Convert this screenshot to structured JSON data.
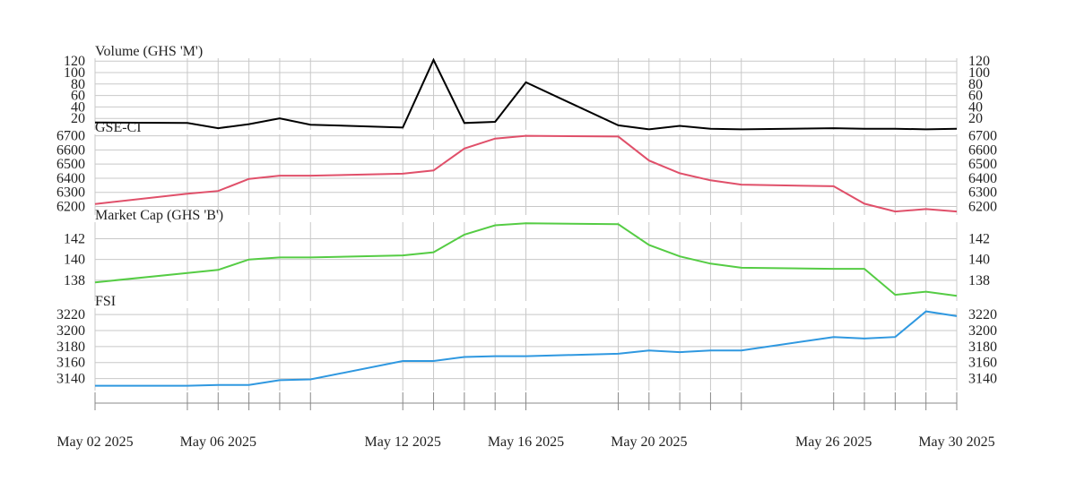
{
  "chart_data": {
    "type": "line",
    "x": [
      "2025-05-02",
      "2025-05-05",
      "2025-05-06",
      "2025-05-07",
      "2025-05-08",
      "2025-05-09",
      "2025-05-12",
      "2025-05-13",
      "2025-05-14",
      "2025-05-15",
      "2025-05-16",
      "2025-05-19",
      "2025-05-20",
      "2025-05-21",
      "2025-05-22",
      "2025-05-23",
      "2025-05-26",
      "2025-05-27",
      "2025-05-28",
      "2025-05-29",
      "2025-05-30"
    ],
    "x_tick_labels": [
      {
        "date": "2025-05-02",
        "label": "May 02 2025"
      },
      {
        "date": "2025-05-06",
        "label": "May 06 2025"
      },
      {
        "date": "2025-05-12",
        "label": "May 12 2025"
      },
      {
        "date": "2025-05-16",
        "label": "May 16 2025"
      },
      {
        "date": "2025-05-20",
        "label": "May 20 2025"
      },
      {
        "date": "2025-05-26",
        "label": "May 26 2025"
      },
      {
        "date": "2025-05-30",
        "label": "May 30 2025"
      }
    ],
    "x_minor_ticks": [
      "2025-05-02",
      "2025-05-05",
      "2025-05-06",
      "2025-05-07",
      "2025-05-08",
      "2025-05-09",
      "2025-05-12",
      "2025-05-13",
      "2025-05-14",
      "2025-05-15",
      "2025-05-16",
      "2025-05-19",
      "2025-05-20",
      "2025-05-21",
      "2025-05-22",
      "2025-05-23",
      "2025-05-26",
      "2025-05-27",
      "2025-05-28",
      "2025-05-29",
      "2025-05-30"
    ],
    "grid": true,
    "panels": [
      {
        "title": "Volume (GHS 'M')",
        "color": "#000000",
        "ylim": [
          0,
          125
        ],
        "yticks": [
          20,
          40,
          60,
          80,
          100,
          120
        ],
        "values": [
          13,
          12,
          3,
          10,
          20,
          9,
          4,
          122,
          12,
          14,
          83,
          8,
          1,
          7,
          2,
          1,
          3,
          2,
          2,
          1,
          2
        ]
      },
      {
        "title": "GSE-CI",
        "color": "#e0506a",
        "ylim": [
          6140,
          6710
        ],
        "yticks": [
          6200,
          6300,
          6400,
          6500,
          6600,
          6700
        ],
        "values": [
          6218,
          6290,
          6310,
          6395,
          6418,
          6418,
          6432,
          6455,
          6610,
          6680,
          6700,
          6695,
          6525,
          6435,
          6385,
          6355,
          6343,
          6220,
          6165,
          6182,
          6165
        ]
      },
      {
        "title": "Market Cap (GHS 'B')",
        "color": "#55cc44",
        "ylim": [
          136,
          143.6
        ],
        "yticks": [
          138,
          140,
          142
        ],
        "values": [
          137.8,
          138.7,
          139.0,
          140.0,
          140.2,
          140.2,
          140.4,
          140.7,
          142.4,
          143.3,
          143.5,
          143.4,
          141.4,
          140.3,
          139.6,
          139.2,
          139.1,
          139.1,
          136.6,
          136.9,
          136.5
        ]
      },
      {
        "title": "FSI",
        "color": "#2f98e0",
        "ylim": [
          3125,
          3228
        ],
        "yticks": [
          3140,
          3160,
          3180,
          3200,
          3220
        ],
        "values": [
          3131,
          3131,
          3132,
          3132,
          3138,
          3139,
          3162,
          3162,
          3167,
          3168,
          3168,
          3171,
          3175,
          3173,
          3175,
          3175,
          3192,
          3190,
          3192,
          3224,
          3218
        ]
      }
    ]
  }
}
